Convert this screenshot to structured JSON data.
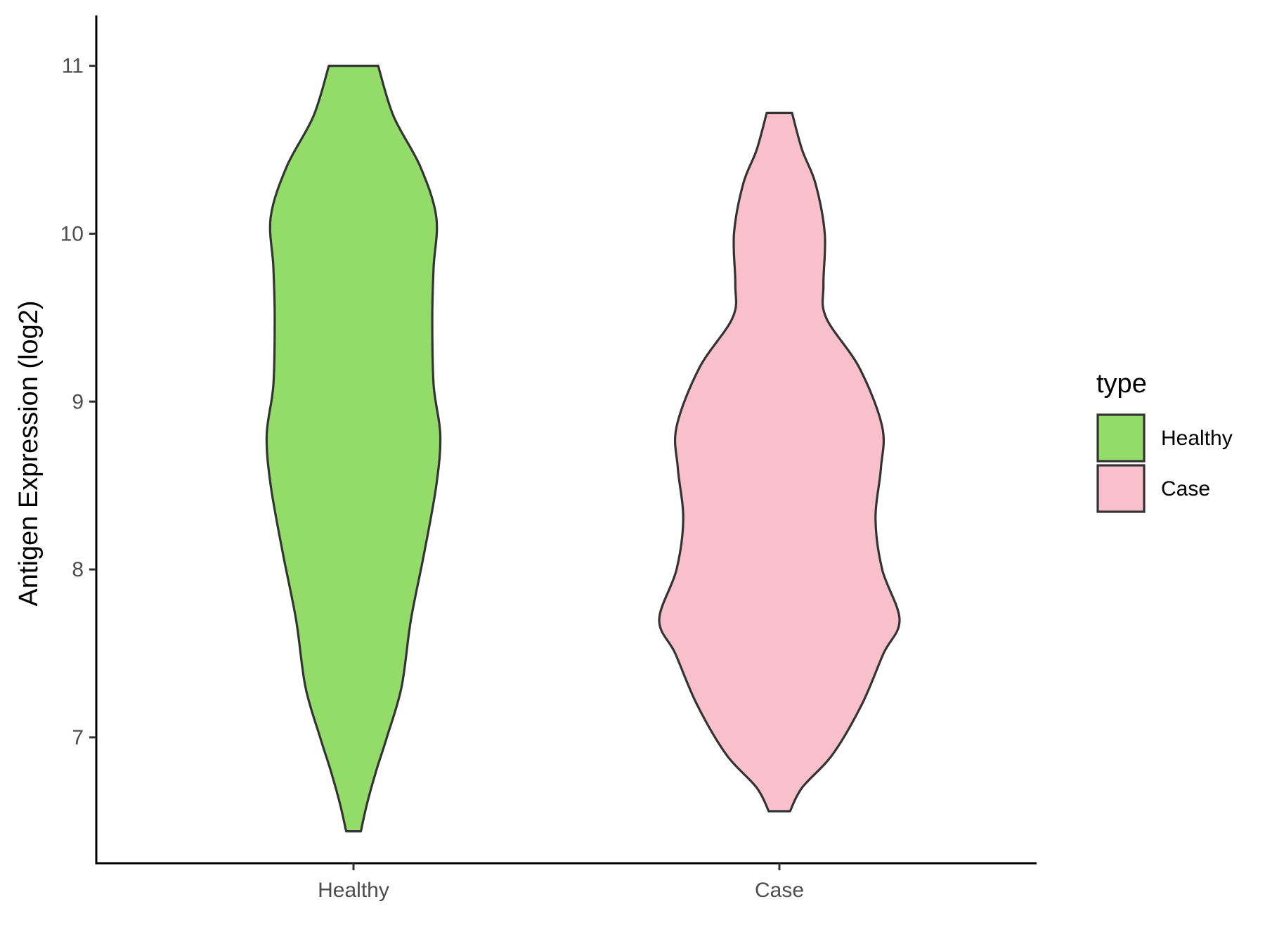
{
  "chart_data": {
    "type": "violin",
    "title": "",
    "xlabel": "",
    "ylabel": "Antigen Expression (log2)",
    "ylim": [
      6.25,
      11.3
    ],
    "yticks": [
      7,
      8,
      9,
      10,
      11
    ],
    "grid": false,
    "categories": [
      "Healthy",
      "Case"
    ],
    "legend": {
      "title": "type",
      "position": "right",
      "entries": [
        {
          "label": "Healthy",
          "color": "#93DC6A"
        },
        {
          "label": "Case",
          "color": "#F8C0CB"
        }
      ]
    },
    "series": [
      {
        "name": "Healthy",
        "color": "#93DC6A",
        "density": [
          {
            "y": 6.44,
            "w": 0.055
          },
          {
            "y": 6.6,
            "w": 0.1
          },
          {
            "y": 6.8,
            "w": 0.17
          },
          {
            "y": 7.0,
            "w": 0.25
          },
          {
            "y": 7.3,
            "w": 0.36
          },
          {
            "y": 7.7,
            "w": 0.43
          },
          {
            "y": 8.1,
            "w": 0.53
          },
          {
            "y": 8.5,
            "w": 0.62
          },
          {
            "y": 8.8,
            "w": 0.65
          },
          {
            "y": 9.1,
            "w": 0.6
          },
          {
            "y": 9.5,
            "w": 0.59
          },
          {
            "y": 9.8,
            "w": 0.6
          },
          {
            "y": 10.1,
            "w": 0.62
          },
          {
            "y": 10.4,
            "w": 0.5
          },
          {
            "y": 10.7,
            "w": 0.3
          },
          {
            "y": 11.0,
            "w": 0.185
          }
        ]
      },
      {
        "name": "Case",
        "color": "#F8C0CB",
        "density": [
          {
            "y": 6.56,
            "w": 0.08
          },
          {
            "y": 6.7,
            "w": 0.17
          },
          {
            "y": 6.9,
            "w": 0.4
          },
          {
            "y": 7.2,
            "w": 0.62
          },
          {
            "y": 7.5,
            "w": 0.78
          },
          {
            "y": 7.7,
            "w": 0.9
          },
          {
            "y": 8.0,
            "w": 0.77
          },
          {
            "y": 8.3,
            "w": 0.72
          },
          {
            "y": 8.6,
            "w": 0.76
          },
          {
            "y": 8.85,
            "w": 0.77
          },
          {
            "y": 9.2,
            "w": 0.6
          },
          {
            "y": 9.5,
            "w": 0.35
          },
          {
            "y": 9.7,
            "w": 0.33
          },
          {
            "y": 10.0,
            "w": 0.34
          },
          {
            "y": 10.3,
            "w": 0.27
          },
          {
            "y": 10.5,
            "w": 0.17
          },
          {
            "y": 10.72,
            "w": 0.095
          }
        ]
      }
    ]
  }
}
